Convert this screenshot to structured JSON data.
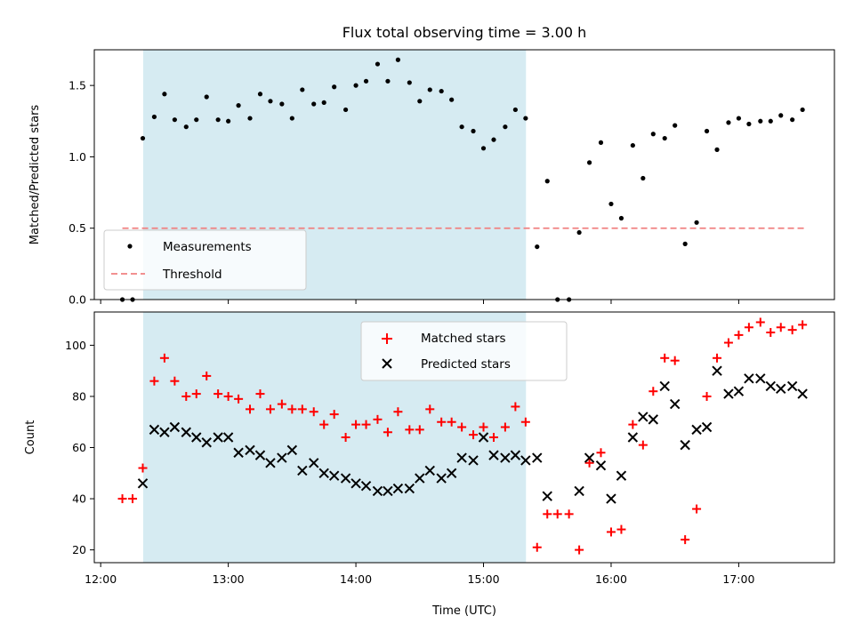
{
  "chart_data": [
    {
      "type": "scatter",
      "title": "Flux total observing time = 3.00 h",
      "ylabel": "Matched/Predicted stars",
      "xlabel": "",
      "x_unit": "hours UTC",
      "xlim": [
        11.95,
        17.75
      ],
      "ylim": [
        0.0,
        1.75
      ],
      "yticks": [
        0.0,
        0.5,
        1.0,
        1.5
      ],
      "ytick_labels": [
        "0.0",
        "0.5",
        "1.0",
        "1.5"
      ],
      "xticks": [
        12,
        13,
        14,
        15,
        16,
        17
      ],
      "shaded_region": {
        "x0": 12.333,
        "x1": 15.333,
        "color": "#add8e6"
      },
      "legend_position": "lower-left",
      "threshold": {
        "name": "Threshold",
        "value": 0.5,
        "x0": 12.17,
        "x1": 17.53,
        "color": "#f08080"
      },
      "series": [
        {
          "name": "Measurements",
          "color": "#000000",
          "points": [
            [
              12.17,
              0.0
            ],
            [
              12.25,
              0.0
            ],
            [
              12.33,
              1.13
            ],
            [
              12.42,
              1.28
            ],
            [
              12.5,
              1.44
            ],
            [
              12.58,
              1.26
            ],
            [
              12.67,
              1.21
            ],
            [
              12.75,
              1.26
            ],
            [
              12.83,
              1.42
            ],
            [
              12.92,
              1.26
            ],
            [
              13.0,
              1.25
            ],
            [
              13.08,
              1.36
            ],
            [
              13.17,
              1.27
            ],
            [
              13.25,
              1.44
            ],
            [
              13.33,
              1.39
            ],
            [
              13.42,
              1.37
            ],
            [
              13.5,
              1.27
            ],
            [
              13.58,
              1.47
            ],
            [
              13.67,
              1.37
            ],
            [
              13.75,
              1.38
            ],
            [
              13.83,
              1.49
            ],
            [
              13.92,
              1.33
            ],
            [
              14.0,
              1.5
            ],
            [
              14.08,
              1.53
            ],
            [
              14.17,
              1.65
            ],
            [
              14.25,
              1.53
            ],
            [
              14.33,
              1.68
            ],
            [
              14.42,
              1.52
            ],
            [
              14.5,
              1.39
            ],
            [
              14.58,
              1.47
            ],
            [
              14.67,
              1.46
            ],
            [
              14.75,
              1.4
            ],
            [
              14.83,
              1.21
            ],
            [
              14.92,
              1.18
            ],
            [
              15.0,
              1.06
            ],
            [
              15.08,
              1.12
            ],
            [
              15.17,
              1.21
            ],
            [
              15.25,
              1.33
            ],
            [
              15.33,
              1.27
            ],
            [
              15.42,
              0.37
            ],
            [
              15.5,
              0.83
            ],
            [
              15.58,
              0.0
            ],
            [
              15.67,
              0.0
            ],
            [
              15.75,
              0.47
            ],
            [
              15.83,
              0.96
            ],
            [
              15.92,
              1.1
            ],
            [
              16.0,
              0.67
            ],
            [
              16.08,
              0.57
            ],
            [
              16.17,
              1.08
            ],
            [
              16.25,
              0.85
            ],
            [
              16.33,
              1.16
            ],
            [
              16.42,
              1.13
            ],
            [
              16.5,
              1.22
            ],
            [
              16.58,
              0.39
            ],
            [
              16.67,
              0.54
            ],
            [
              16.75,
              1.18
            ],
            [
              16.83,
              1.05
            ],
            [
              16.92,
              1.24
            ],
            [
              17.0,
              1.27
            ],
            [
              17.08,
              1.23
            ],
            [
              17.17,
              1.25
            ],
            [
              17.25,
              1.25
            ],
            [
              17.33,
              1.29
            ],
            [
              17.42,
              1.26
            ],
            [
              17.5,
              1.33
            ]
          ]
        }
      ]
    },
    {
      "type": "scatter",
      "title": "",
      "ylabel": "Count",
      "xlabel": "Time (UTC)",
      "x_unit": "hours UTC",
      "xlim": [
        11.95,
        17.75
      ],
      "ylim": [
        15,
        113
      ],
      "yticks": [
        20,
        40,
        60,
        80,
        100
      ],
      "ytick_labels": [
        "20",
        "40",
        "60",
        "80",
        "100"
      ],
      "xticks": [
        12,
        13,
        14,
        15,
        16,
        17
      ],
      "xtick_labels": [
        "12:00",
        "13:00",
        "14:00",
        "15:00",
        "16:00",
        "17:00"
      ],
      "shaded_region": {
        "x0": 12.333,
        "x1": 15.333,
        "color": "#add8e6"
      },
      "legend_position": "upper-center",
      "series": [
        {
          "name": "Matched stars",
          "marker": "plus",
          "color": "#ff0000",
          "points": [
            [
              12.17,
              40
            ],
            [
              12.25,
              40
            ],
            [
              12.33,
              52
            ],
            [
              12.42,
              86
            ],
            [
              12.5,
              95
            ],
            [
              12.58,
              86
            ],
            [
              12.67,
              80
            ],
            [
              12.75,
              81
            ],
            [
              12.83,
              88
            ],
            [
              12.92,
              81
            ],
            [
              13.0,
              80
            ],
            [
              13.08,
              79
            ],
            [
              13.17,
              75
            ],
            [
              13.25,
              81
            ],
            [
              13.33,
              75
            ],
            [
              13.42,
              77
            ],
            [
              13.5,
              75
            ],
            [
              13.58,
              75
            ],
            [
              13.67,
              74
            ],
            [
              13.75,
              69
            ],
            [
              13.83,
              73
            ],
            [
              13.92,
              64
            ],
            [
              14.0,
              69
            ],
            [
              14.08,
              69
            ],
            [
              14.17,
              71
            ],
            [
              14.25,
              66
            ],
            [
              14.33,
              74
            ],
            [
              14.42,
              67
            ],
            [
              14.5,
              67
            ],
            [
              14.58,
              75
            ],
            [
              14.67,
              70
            ],
            [
              14.75,
              70
            ],
            [
              14.83,
              68
            ],
            [
              14.92,
              65
            ],
            [
              15.0,
              68
            ],
            [
              15.08,
              64
            ],
            [
              15.17,
              68
            ],
            [
              15.25,
              76
            ],
            [
              15.33,
              70
            ],
            [
              15.42,
              21
            ],
            [
              15.5,
              34
            ],
            [
              15.58,
              34
            ],
            [
              15.67,
              34
            ],
            [
              15.75,
              20
            ],
            [
              15.83,
              54
            ],
            [
              15.92,
              58
            ],
            [
              16.0,
              27
            ],
            [
              16.08,
              28
            ],
            [
              16.17,
              69
            ],
            [
              16.25,
              61
            ],
            [
              16.33,
              82
            ],
            [
              16.42,
              95
            ],
            [
              16.5,
              94
            ],
            [
              16.58,
              24
            ],
            [
              16.67,
              36
            ],
            [
              16.75,
              80
            ],
            [
              16.83,
              95
            ],
            [
              16.92,
              101
            ],
            [
              17.0,
              104
            ],
            [
              17.08,
              107
            ],
            [
              17.17,
              109
            ],
            [
              17.25,
              105
            ],
            [
              17.33,
              107
            ],
            [
              17.42,
              106
            ],
            [
              17.5,
              108
            ]
          ]
        },
        {
          "name": "Predicted stars",
          "marker": "x",
          "color": "#000000",
          "points": [
            [
              12.33,
              46
            ],
            [
              12.42,
              67
            ],
            [
              12.5,
              66
            ],
            [
              12.58,
              68
            ],
            [
              12.67,
              66
            ],
            [
              12.75,
              64
            ],
            [
              12.83,
              62
            ],
            [
              12.92,
              64
            ],
            [
              13.0,
              64
            ],
            [
              13.08,
              58
            ],
            [
              13.17,
              59
            ],
            [
              13.25,
              57
            ],
            [
              13.33,
              54
            ],
            [
              13.42,
              56
            ],
            [
              13.5,
              59
            ],
            [
              13.58,
              51
            ],
            [
              13.67,
              54
            ],
            [
              13.75,
              50
            ],
            [
              13.83,
              49
            ],
            [
              13.92,
              48
            ],
            [
              14.0,
              46
            ],
            [
              14.08,
              45
            ],
            [
              14.17,
              43
            ],
            [
              14.25,
              43
            ],
            [
              14.33,
              44
            ],
            [
              14.42,
              44
            ],
            [
              14.5,
              48
            ],
            [
              14.58,
              51
            ],
            [
              14.67,
              48
            ],
            [
              14.75,
              50
            ],
            [
              14.83,
              56
            ],
            [
              14.92,
              55
            ],
            [
              15.0,
              64
            ],
            [
              15.08,
              57
            ],
            [
              15.17,
              56
            ],
            [
              15.25,
              57
            ],
            [
              15.33,
              55
            ],
            [
              15.42,
              56
            ],
            [
              15.5,
              41
            ],
            [
              15.75,
              43
            ],
            [
              15.83,
              56
            ],
            [
              15.92,
              53
            ],
            [
              16.0,
              40
            ],
            [
              16.08,
              49
            ],
            [
              16.17,
              64
            ],
            [
              16.25,
              72
            ],
            [
              16.33,
              71
            ],
            [
              16.42,
              84
            ],
            [
              16.5,
              77
            ],
            [
              16.58,
              61
            ],
            [
              16.67,
              67
            ],
            [
              16.75,
              68
            ],
            [
              16.83,
              90
            ],
            [
              16.92,
              81
            ],
            [
              17.0,
              82
            ],
            [
              17.08,
              87
            ],
            [
              17.17,
              87
            ],
            [
              17.25,
              84
            ],
            [
              17.33,
              83
            ],
            [
              17.42,
              84
            ],
            [
              17.5,
              81
            ]
          ]
        }
      ]
    }
  ]
}
